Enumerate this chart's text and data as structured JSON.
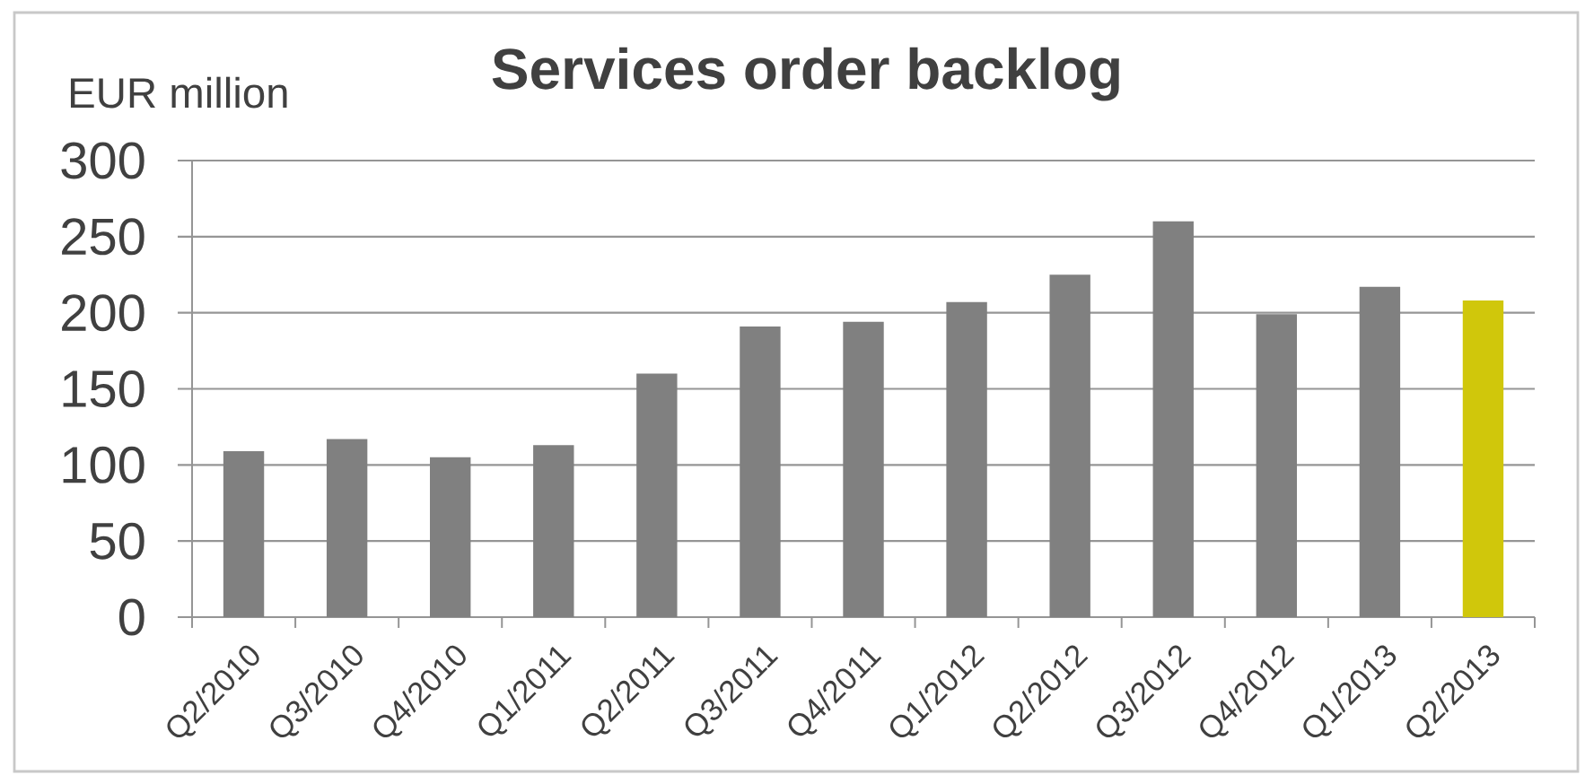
{
  "chart_data": {
    "type": "bar",
    "title": "Services order backlog",
    "ylabel": "EUR million",
    "categories": [
      "Q2/2010",
      "Q3/2010",
      "Q4/2010",
      "Q1/2011",
      "Q2/2011",
      "Q3/2011",
      "Q4/2011",
      "Q1/2012",
      "Q2/2012",
      "Q3/2012",
      "Q4/2012",
      "Q1/2013",
      "Q2/2013"
    ],
    "values": [
      109,
      117,
      105,
      113,
      160,
      191,
      194,
      207,
      225,
      260,
      199,
      217,
      208
    ],
    "colors": [
      "#808080",
      "#808080",
      "#808080",
      "#808080",
      "#808080",
      "#808080",
      "#808080",
      "#808080",
      "#808080",
      "#808080",
      "#808080",
      "#808080",
      "#d0c70b"
    ],
    "ylim": [
      0,
      300
    ],
    "yticks": [
      0,
      50,
      100,
      150,
      200,
      250,
      300
    ],
    "grid": "y"
  }
}
